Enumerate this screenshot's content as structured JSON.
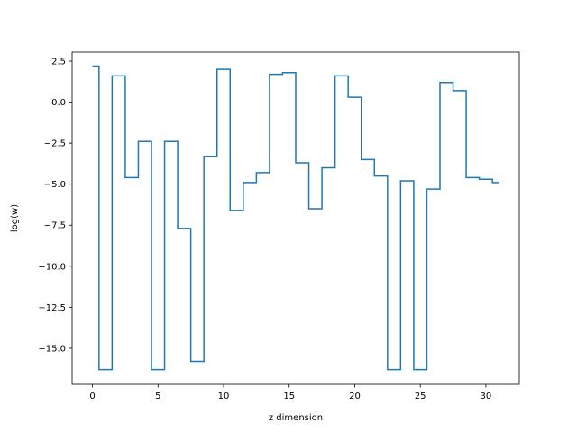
{
  "chart_data": {
    "type": "line",
    "step": "mid",
    "title": "",
    "xlabel": "z dimension",
    "ylabel": "log(w)",
    "xlim": [
      -1.55,
      32.55
    ],
    "ylim": [
      -17.2,
      3.05
    ],
    "xticks": [
      0,
      5,
      10,
      15,
      20,
      25,
      30
    ],
    "xtick_labels": [
      "0",
      "5",
      "10",
      "15",
      "20",
      "25",
      "30"
    ],
    "yticks": [
      2.5,
      0.0,
      -2.5,
      -5.0,
      -7.5,
      -10.0,
      -12.5,
      -15.0
    ],
    "ytick_labels": [
      "2.5",
      "0.0",
      "−2.5",
      "−5.0",
      "−7.5",
      "−10.0",
      "−12.5",
      "−15.0"
    ],
    "grid": false,
    "series": [
      {
        "color": "#1f77b4",
        "x": [
          0,
          1,
          2,
          3,
          4,
          5,
          6,
          7,
          8,
          9,
          10,
          11,
          12,
          13,
          14,
          15,
          16,
          17,
          18,
          19,
          20,
          21,
          22,
          23,
          24,
          25,
          26,
          27,
          28,
          29,
          30,
          31
        ],
        "values": [
          2.2,
          -16.3,
          1.6,
          -4.6,
          -2.4,
          -16.3,
          -2.4,
          -7.7,
          -15.8,
          -3.3,
          2.0,
          -6.6,
          -4.9,
          -4.3,
          1.7,
          1.8,
          -3.7,
          -6.5,
          -4.0,
          1.6,
          0.3,
          -3.5,
          -4.5,
          -16.3,
          -4.8,
          -16.3,
          -5.3,
          1.2,
          0.7,
          -4.6,
          -4.7,
          -4.9
        ]
      }
    ]
  }
}
